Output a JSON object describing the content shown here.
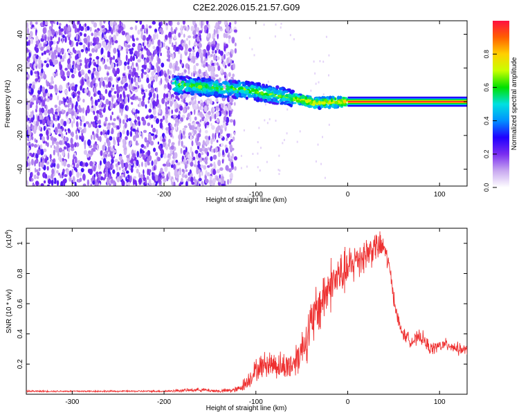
{
  "figure": {
    "title": "C2E2.2026.015.21.57.G09"
  },
  "chart_data": [
    {
      "type": "heatmap",
      "title": "C2E2.2026.015.21.57.G09",
      "xlabel": "Height of straight line (km)",
      "ylabel": "Frequency (Hz)",
      "xlim": [
        -350,
        130
      ],
      "ylim": [
        -50,
        48
      ],
      "xticks": [
        -300,
        -200,
        -100,
        0,
        100
      ],
      "yticks": [
        -40,
        -20,
        0,
        20,
        40
      ],
      "colorbar": {
        "label": "Normalized spectral amplitude",
        "range": [
          0,
          1
        ],
        "ticks": [
          "0.0",
          "0.2",
          "0.4",
          "0.6",
          "0.8"
        ],
        "colors": [
          "#ffffff",
          "#c8a8f0",
          "#7a2df0",
          "#2000ff",
          "#0090ff",
          "#00e0e0",
          "#00e000",
          "#c8ff00",
          "#ffd000",
          "#ff6000",
          "#ff1040"
        ]
      },
      "regions": [
        {
          "name": "broadband noise",
          "x": [
            -350,
            -122
          ],
          "y": [
            -50,
            48
          ],
          "level": 0.15
        },
        {
          "name": "drifting tone",
          "x": [
            -190,
            0
          ],
          "y": [
            -8,
            14
          ],
          "level": 0.5
        },
        {
          "name": "steady tone",
          "x": [
            0,
            130
          ],
          "y": [
            -1,
            1
          ],
          "level": 0.95
        }
      ]
    },
    {
      "type": "line",
      "xlabel": "Height of straight line (km)",
      "ylabel": "SNR (10 * v/v)",
      "y_scale_label": "(x10",
      "y_scale_exp": "4",
      "y_scale_close": ")",
      "xlim": [
        -350,
        130
      ],
      "ylim": [
        0,
        1.1
      ],
      "xticks": [
        -300,
        -200,
        -100,
        0,
        100
      ],
      "yticks": [
        0.2,
        0.4,
        0.6,
        0.8,
        1
      ],
      "series": [
        {
          "name": "SNR",
          "color": "#ee3030",
          "x": [
            -350,
            -300,
            -250,
            -200,
            -180,
            -160,
            -140,
            -120,
            -110,
            -100,
            -90,
            -80,
            -70,
            -60,
            -50,
            -40,
            -30,
            -20,
            -10,
            0,
            10,
            20,
            30,
            40,
            45,
            50,
            55,
            60,
            70,
            80,
            90,
            100,
            110,
            120,
            130
          ],
          "y": [
            0.02,
            0.02,
            0.02,
            0.02,
            0.025,
            0.03,
            0.02,
            0.03,
            0.08,
            0.16,
            0.2,
            0.2,
            0.18,
            0.2,
            0.3,
            0.45,
            0.6,
            0.72,
            0.78,
            0.82,
            0.9,
            0.93,
            0.98,
            0.97,
            0.85,
            0.65,
            0.48,
            0.4,
            0.35,
            0.38,
            0.3,
            0.32,
            0.33,
            0.3,
            0.29
          ],
          "jitter": [
            0.005,
            0.005,
            0.005,
            0.006,
            0.01,
            0.012,
            0.01,
            0.02,
            0.05,
            0.07,
            0.08,
            0.09,
            0.09,
            0.1,
            0.13,
            0.17,
            0.18,
            0.17,
            0.15,
            0.14,
            0.13,
            0.12,
            0.1,
            0.08,
            0.06,
            0.05,
            0.05,
            0.04,
            0.04,
            0.05,
            0.04,
            0.04,
            0.04,
            0.04,
            0.03
          ]
        }
      ]
    }
  ]
}
